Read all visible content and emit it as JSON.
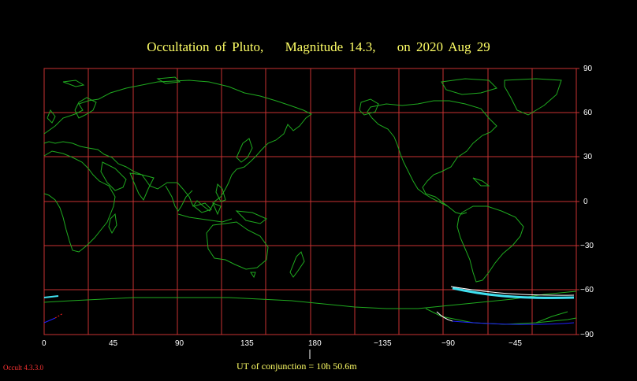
{
  "title": {
    "part1": "Occultation of Pluto,",
    "part2": "Magnitude 14.3,",
    "part3": "on 2020 Aug 29"
  },
  "axes": {
    "longitude_ticks": [
      "0",
      "45",
      "90",
      "135",
      "180",
      "−135",
      "−90",
      "−45"
    ],
    "latitude_ticks": [
      "90",
      "60",
      "30",
      "0",
      "−30",
      "−60",
      "−90"
    ]
  },
  "conjunction_label": "UT of conjunction = 10h 50.6m",
  "version_label": "Occult 4.3.3.0",
  "colors": {
    "background": "#000000",
    "grid": "#c83232",
    "coastline": "#1faa1f",
    "title": "#ffff66",
    "central_path": "#40e0f0",
    "limit_white": "#ffffff",
    "limit_blue": "#2020ff",
    "limit_red": "#ff2020"
  }
}
